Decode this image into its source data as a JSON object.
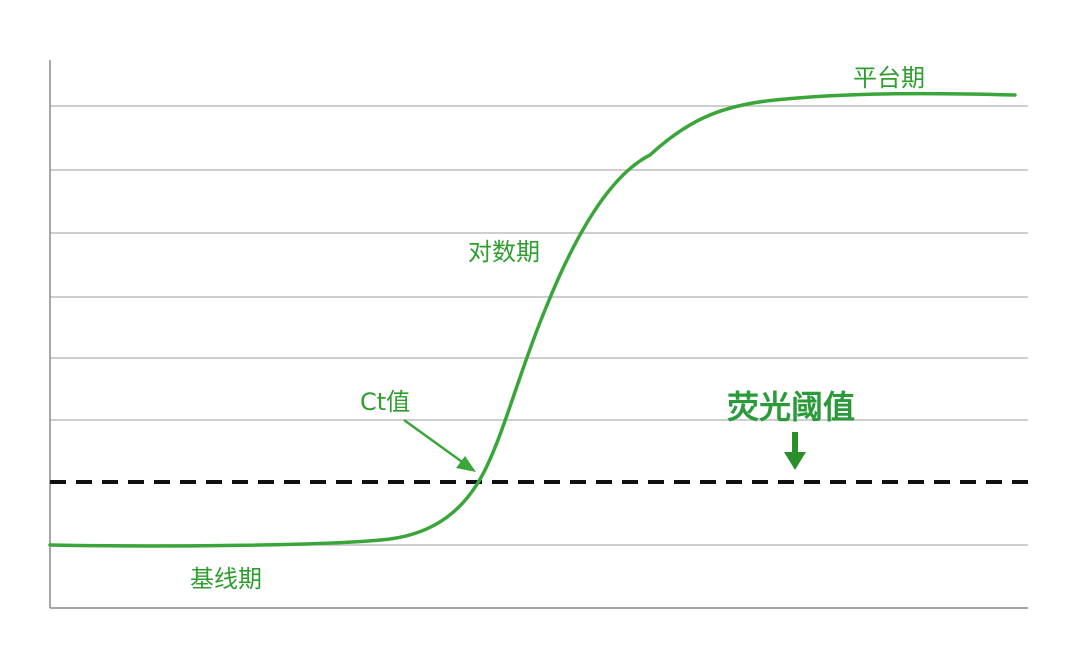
{
  "labels": {
    "plateau": "平台期",
    "exponential": "对数期",
    "ct_value": "Ct值",
    "threshold": "荧光阈值",
    "baseline": "基线期"
  },
  "colors": {
    "curve": "#3aa63a",
    "label_text": "#2f9e2f",
    "threshold_text": "#2a9a3a",
    "arrow": "#2a8f2a",
    "threshold_line": "#111111",
    "gridline": "#bdbdbd",
    "axis": "#8a8a8a"
  },
  "style": {
    "threshold_line": "dashed",
    "curve_shape": "sigmoid"
  }
}
